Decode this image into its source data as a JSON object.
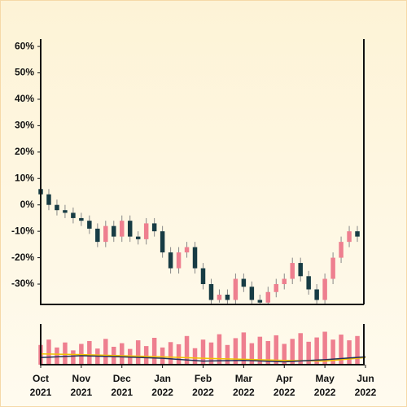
{
  "chart_data": {
    "type": "candlestick",
    "x": [
      0,
      0.2,
      0.4,
      0.6,
      0.8,
      1.0,
      1.2,
      1.4,
      1.6,
      1.8,
      2.0,
      2.2,
      2.4,
      2.6,
      2.8,
      3.0,
      3.2,
      3.4,
      3.6,
      3.8,
      4.0,
      4.2,
      4.4,
      4.6,
      4.8,
      5.0,
      5.2,
      5.4,
      5.6,
      5.8,
      6.0,
      6.2,
      6.4,
      6.6,
      6.8,
      7.0,
      7.2,
      7.4,
      7.6,
      7.8
    ],
    "open": [
      6,
      4,
      0,
      -2,
      -3,
      -5,
      -6,
      -9,
      -14,
      -8,
      -12,
      -6,
      -12,
      -13,
      -7,
      -10,
      -18,
      -24,
      -18,
      -16,
      -24,
      -30,
      -36,
      -34,
      -36,
      -28,
      -31,
      -36,
      -37,
      -33,
      -30,
      -28,
      -22,
      -27,
      -32,
      -36,
      -28,
      -20,
      -14,
      -10
    ],
    "close": [
      4,
      0,
      -2,
      -3,
      -5,
      -6,
      -9,
      -14,
      -8,
      -12,
      -6,
      -12,
      -13,
      -7,
      -10,
      -18,
      -24,
      -18,
      -16,
      -24,
      -30,
      -36,
      -34,
      -36,
      -28,
      -31,
      -36,
      -37,
      -33,
      -30,
      -28,
      -22,
      -27,
      -32,
      -36,
      -28,
      -20,
      -14,
      -10,
      -12
    ],
    "high": [
      8,
      6,
      2,
      0,
      -1,
      -3,
      -4,
      -7,
      -6,
      -6,
      -4,
      -4,
      -10,
      -5,
      -5,
      -8,
      -16,
      -16,
      -14,
      -14,
      -22,
      -28,
      -32,
      -32,
      -26,
      -26,
      -29,
      -34,
      -31,
      -28,
      -26,
      -20,
      -20,
      -25,
      -30,
      -26,
      -18,
      -12,
      -8,
      -8
    ],
    "low": [
      2,
      -2,
      -4,
      -5,
      -7,
      -8,
      -11,
      -16,
      -16,
      -14,
      -14,
      -14,
      -15,
      -15,
      -12,
      -20,
      -26,
      -26,
      -20,
      -26,
      -32,
      -38,
      -37,
      -38,
      -38,
      -33,
      -38,
      -39,
      -39,
      -35,
      -32,
      -30,
      -29,
      -34,
      -38,
      -38,
      -30,
      -22,
      -16,
      -14
    ],
    "volume": [
      55,
      70,
      48,
      62,
      40,
      58,
      66,
      45,
      72,
      50,
      60,
      44,
      68,
      52,
      75,
      48,
      63,
      57,
      80,
      46,
      70,
      62,
      85,
      55,
      74,
      90,
      60,
      78,
      66,
      82,
      58,
      72,
      88,
      64,
      76,
      92,
      70,
      84,
      68,
      80
    ],
    "up_color": "#ee7f8f",
    "down_color": "#173c44",
    "ma": [
      {
        "color": "#f2c200",
        "x": [
          0,
          1,
          2,
          3,
          4,
          5,
          6,
          7,
          8
        ],
        "values": [
          30,
          28,
          25,
          22,
          18,
          15,
          12,
          10,
          20
        ]
      },
      {
        "color": "#1f2f5a",
        "x": [
          0,
          1,
          2,
          3,
          4,
          5,
          6,
          7,
          8
        ],
        "values": [
          20,
          25,
          22,
          18,
          10,
          12,
          8,
          14,
          22
        ]
      }
    ],
    "xlim": [
      0,
      8
    ],
    "ylim": [
      -37.7,
      62.8
    ],
    "volume_ylim": [
      0,
      100
    ],
    "yticks": [
      {
        "value": 60,
        "label": "60%"
      },
      {
        "value": 50,
        "label": "50%"
      },
      {
        "value": 40,
        "label": "40%"
      },
      {
        "value": 30,
        "label": "30%"
      },
      {
        "value": 20,
        "label": "20%"
      },
      {
        "value": 10,
        "label": "10%"
      },
      {
        "value": 0,
        "label": "0%"
      },
      {
        "value": -10,
        "label": "-10%"
      },
      {
        "value": -20,
        "label": "-20%"
      },
      {
        "value": -30,
        "label": "-30%"
      }
    ],
    "xticks": [
      {
        "value": 0,
        "label": [
          "Oct",
          "2021"
        ]
      },
      {
        "value": 1,
        "label": [
          "Nov",
          "2021"
        ]
      },
      {
        "value": 2,
        "label": [
          "Dec",
          "2021"
        ]
      },
      {
        "value": 3,
        "label": [
          "Jan",
          "2022"
        ]
      },
      {
        "value": 4,
        "label": [
          "Feb",
          "2022"
        ]
      },
      {
        "value": 5,
        "label": [
          "Mar",
          "2022"
        ]
      },
      {
        "value": 6,
        "label": [
          "Apr",
          "2022"
        ]
      },
      {
        "value": 7,
        "label": [
          "May",
          "2022"
        ]
      },
      {
        "value": 8,
        "label": [
          "Jun",
          "2022"
        ]
      }
    ]
  }
}
